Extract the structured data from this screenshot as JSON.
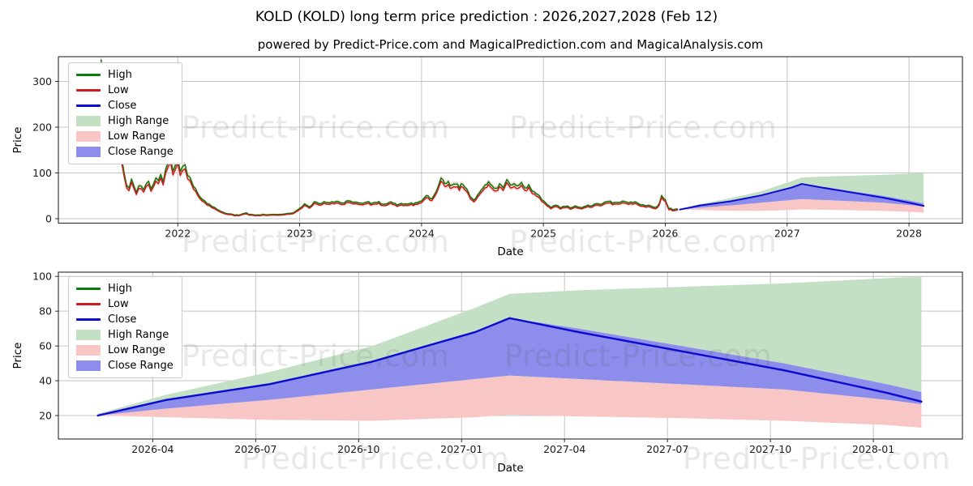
{
  "figure": {
    "title": "KOLD (KOLD) long term price prediction : 2026,2027,2028 (Feb 12)",
    "subtitle": "powered by Predict-Price.com and MagicalPrediction.com and MagicalAnalysis.com",
    "watermark": "Predict-Price.com",
    "background": "#ffffff"
  },
  "colors": {
    "high_line": "#0a7a0a",
    "low_line": "#cf1b1b",
    "close_line": "#0b0bd0",
    "high_range": "#c4e0c4",
    "low_range": "#f9c6c6",
    "close_range": "#8d8deb",
    "hist_low_halo": "#f8d2d2",
    "hist_high_halo": "#d9ecd6",
    "grid": "#c3c3c3",
    "axis": "#2b2b2b",
    "tick_text": "#1a1a1a"
  },
  "legend": {
    "items": [
      {
        "label": "High",
        "swatch": "line",
        "color": "#0a7a0a"
      },
      {
        "label": "Low",
        "swatch": "line",
        "color": "#cf1b1b"
      },
      {
        "label": "Close",
        "swatch": "line",
        "color": "#0b0bd0"
      },
      {
        "label": "High Range",
        "swatch": "patch",
        "color": "#c4e0c4"
      },
      {
        "label": "Low Range",
        "swatch": "patch",
        "color": "#f9c6c6"
      },
      {
        "label": "Close Range",
        "swatch": "patch",
        "color": "#8d8deb"
      }
    ]
  },
  "chart_data": [
    {
      "type": "line",
      "title": "KOLD price history 2021-2026 with prediction to 2028",
      "xlabel": "Date",
      "ylabel": "Price",
      "x_ticks": [
        {
          "label": "2022",
          "x": 2022
        },
        {
          "label": "2023",
          "x": 2023
        },
        {
          "label": "2024",
          "x": 2024
        },
        {
          "label": "2025",
          "x": 2025
        },
        {
          "label": "2026",
          "x": 2026
        },
        {
          "label": "2027",
          "x": 2027
        },
        {
          "label": "2028",
          "x": 2028
        }
      ],
      "y_ticks": [
        0,
        100,
        200,
        300
      ],
      "xlim": [
        2021.02,
        2028.44
      ],
      "ylim": [
        -10,
        354
      ],
      "grid": true,
      "legend_position": "upper left",
      "series": [
        {
          "name": "Close",
          "role": "history",
          "x_unit": "decimal year",
          "points": [
            [
              2021.37,
              335
            ],
            [
              2021.39,
              300
            ],
            [
              2021.41,
              318
            ],
            [
              2021.44,
              260
            ],
            [
              2021.47,
              228
            ],
            [
              2021.5,
              180
            ],
            [
              2021.52,
              150
            ],
            [
              2021.54,
              120
            ],
            [
              2021.56,
              92
            ],
            [
              2021.58,
              70
            ],
            [
              2021.6,
              63
            ],
            [
              2021.62,
              80
            ],
            [
              2021.64,
              68
            ],
            [
              2021.66,
              58
            ],
            [
              2021.68,
              72
            ],
            [
              2021.7,
              65
            ],
            [
              2021.72,
              58
            ],
            [
              2021.74,
              70
            ],
            [
              2021.76,
              78
            ],
            [
              2021.78,
              65
            ],
            [
              2021.8,
              72
            ],
            [
              2021.82,
              88
            ],
            [
              2021.84,
              76
            ],
            [
              2021.86,
              90
            ],
            [
              2021.88,
              80
            ],
            [
              2021.9,
              100
            ],
            [
              2021.92,
              118
            ],
            [
              2021.94,
              135
            ],
            [
              2021.96,
              105
            ],
            [
              2021.98,
              112
            ],
            [
              2022.0,
              122
            ],
            [
              2022.02,
              95
            ],
            [
              2022.04,
              108
            ],
            [
              2022.06,
              115
            ],
            [
              2022.08,
              90
            ],
            [
              2022.1,
              85
            ],
            [
              2022.13,
              65
            ],
            [
              2022.16,
              55
            ],
            [
              2022.2,
              42
            ],
            [
              2022.24,
              33
            ],
            [
              2022.28,
              25
            ],
            [
              2022.32,
              20
            ],
            [
              2022.36,
              15
            ],
            [
              2022.4,
              11
            ],
            [
              2022.45,
              8
            ],
            [
              2022.5,
              7
            ],
            [
              2022.55,
              12
            ],
            [
              2022.6,
              8
            ],
            [
              2022.65,
              7
            ],
            [
              2022.7,
              9
            ],
            [
              2022.75,
              8
            ],
            [
              2022.8,
              9
            ],
            [
              2022.85,
              8
            ],
            [
              2022.9,
              10
            ],
            [
              2022.95,
              13
            ],
            [
              2023.0,
              20
            ],
            [
              2023.04,
              30
            ],
            [
              2023.08,
              26
            ],
            [
              2023.12,
              34
            ],
            [
              2023.16,
              30
            ],
            [
              2023.2,
              36
            ],
            [
              2023.25,
              32
            ],
            [
              2023.3,
              37
            ],
            [
              2023.35,
              33
            ],
            [
              2023.4,
              38
            ],
            [
              2023.45,
              34
            ],
            [
              2023.5,
              32
            ],
            [
              2023.55,
              35
            ],
            [
              2023.6,
              31
            ],
            [
              2023.65,
              34
            ],
            [
              2023.7,
              30
            ],
            [
              2023.75,
              33
            ],
            [
              2023.8,
              29
            ],
            [
              2023.85,
              32
            ],
            [
              2023.9,
              30
            ],
            [
              2023.95,
              33
            ],
            [
              2024.0,
              36
            ],
            [
              2024.04,
              50
            ],
            [
              2024.07,
              42
            ],
            [
              2024.1,
              46
            ],
            [
              2024.13,
              60
            ],
            [
              2024.16,
              85
            ],
            [
              2024.19,
              70
            ],
            [
              2024.22,
              76
            ],
            [
              2024.25,
              70
            ],
            [
              2024.28,
              74
            ],
            [
              2024.31,
              68
            ],
            [
              2024.34,
              72
            ],
            [
              2024.37,
              62
            ],
            [
              2024.4,
              48
            ],
            [
              2024.43,
              38
            ],
            [
              2024.46,
              52
            ],
            [
              2024.49,
              62
            ],
            [
              2024.52,
              70
            ],
            [
              2024.55,
              74
            ],
            [
              2024.58,
              68
            ],
            [
              2024.61,
              62
            ],
            [
              2024.64,
              70
            ],
            [
              2024.67,
              64
            ],
            [
              2024.7,
              80
            ],
            [
              2024.73,
              72
            ],
            [
              2024.76,
              76
            ],
            [
              2024.79,
              70
            ],
            [
              2024.82,
              74
            ],
            [
              2024.85,
              62
            ],
            [
              2024.88,
              70
            ],
            [
              2024.91,
              58
            ],
            [
              2024.94,
              52
            ],
            [
              2024.97,
              46
            ],
            [
              2025.0,
              36
            ],
            [
              2025.03,
              28
            ],
            [
              2025.06,
              24
            ],
            [
              2025.1,
              28
            ],
            [
              2025.14,
              24
            ],
            [
              2025.18,
              27
            ],
            [
              2025.22,
              23
            ],
            [
              2025.26,
              25
            ],
            [
              2025.3,
              23
            ],
            [
              2025.35,
              26
            ],
            [
              2025.4,
              28
            ],
            [
              2025.45,
              30
            ],
            [
              2025.5,
              33
            ],
            [
              2025.55,
              35
            ],
            [
              2025.6,
              32
            ],
            [
              2025.65,
              35
            ],
            [
              2025.7,
              33
            ],
            [
              2025.75,
              35
            ],
            [
              2025.8,
              30
            ],
            [
              2025.84,
              28
            ],
            [
              2025.88,
              26
            ],
            [
              2025.92,
              24
            ],
            [
              2025.95,
              30
            ],
            [
              2025.97,
              46
            ],
            [
              2026.0,
              40
            ],
            [
              2026.03,
              22
            ],
            [
              2026.06,
              19
            ],
            [
              2026.1,
              20
            ]
          ],
          "high_series_note": "High line tracks Close about 3-4% above",
          "low_series_note": "Low line tracks Close about 3-4% below"
        },
        {
          "name": "Close prediction",
          "role": "forecast",
          "reference": "same prediction data as second chart (chart_data[1].prediction)"
        }
      ]
    },
    {
      "type": "line",
      "title": "KOLD price prediction detail Feb 2026 - Feb 2028",
      "xlabel": "Date",
      "ylabel": "Price",
      "x_ticks": [
        {
          "label": "2026-04",
          "m": 1.6
        },
        {
          "label": "2026-07",
          "m": 4.6
        },
        {
          "label": "2026-10",
          "m": 7.6
        },
        {
          "label": "2027-01",
          "m": 10.6
        },
        {
          "label": "2027-04",
          "m": 13.6
        },
        {
          "label": "2027-07",
          "m": 16.6
        },
        {
          "label": "2027-10",
          "m": 19.6
        },
        {
          "label": "2028-01",
          "m": 22.6
        }
      ],
      "y_ticks": [
        20,
        40,
        60,
        80,
        100
      ],
      "ylim": [
        6.5,
        102.4
      ],
      "grid": true,
      "legend_position": "upper left",
      "prediction": {
        "x_unit": "months since 2026-02-12",
        "months": [
          0,
          2,
          5,
          8,
          11,
          12,
          14,
          17,
          20,
          23,
          24
        ],
        "close": [
          20,
          29,
          38,
          51,
          68,
          76,
          68,
          57,
          46,
          33,
          28
        ],
        "close_high": [
          20,
          29,
          38,
          51,
          68,
          76,
          70,
          60,
          50,
          38,
          33.5
        ],
        "close_low": [
          20,
          24,
          29,
          35,
          41,
          43,
          41,
          38,
          35,
          29,
          26.5
        ],
        "high_top": [
          21,
          32,
          45,
          60,
          82,
          90,
          92,
          94,
          96,
          99,
          100
        ],
        "low_bottom": [
          20,
          19,
          17.5,
          17,
          19,
          20.5,
          19.5,
          18.5,
          17,
          14.5,
          13
        ]
      }
    }
  ]
}
